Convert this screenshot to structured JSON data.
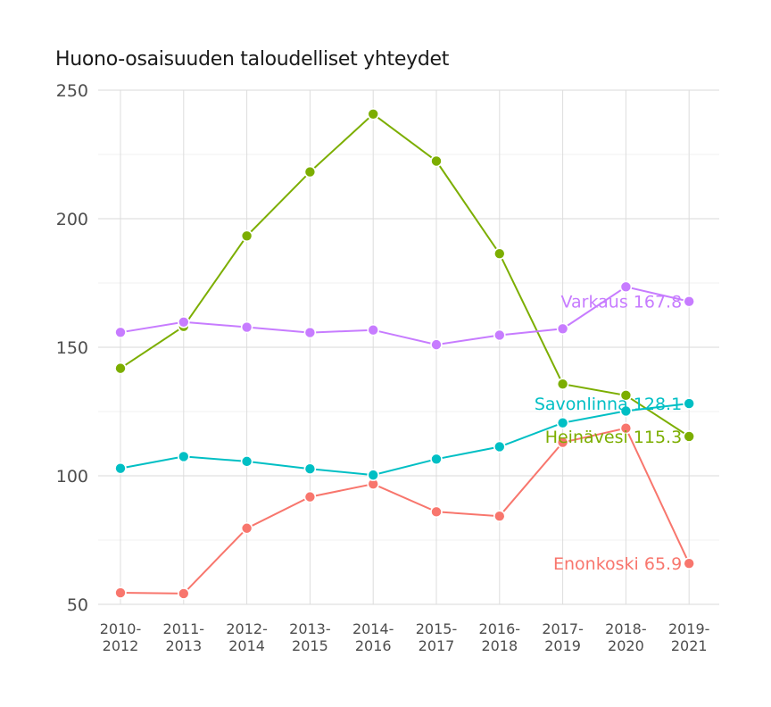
{
  "chart_data": {
    "type": "line",
    "title": "Huono-osaisuuden taloudelliset yhteydet",
    "xlabel": "",
    "ylabel": "",
    "categories": [
      "2010-2012",
      "2011-2013",
      "2012-2014",
      "2013-2015",
      "2014-2016",
      "2015-2017",
      "2016-2018",
      "2017-2019",
      "2018-2020",
      "2019-2021"
    ],
    "yticks": [
      50,
      100,
      150,
      200,
      250
    ],
    "ylim": [
      50,
      250
    ],
    "grid": true,
    "series": [
      {
        "name": "Enonkoski",
        "color": "#F8766D",
        "values": [
          54.5,
          54.2,
          79.6,
          91.8,
          96.8,
          86.0,
          84.3,
          113.0,
          118.5,
          65.9
        ],
        "label": "Enonkoski 65.9"
      },
      {
        "name": "Heinävesi",
        "color": "#7CAE00",
        "values": [
          141.8,
          158.1,
          193.3,
          218.2,
          240.7,
          222.4,
          186.4,
          135.7,
          131.3,
          115.3
        ],
        "label": "Heinävesi 115.3"
      },
      {
        "name": "Savonlinna",
        "color": "#00BFC4",
        "values": [
          102.9,
          107.5,
          105.6,
          102.7,
          100.3,
          106.5,
          111.3,
          120.6,
          125.2,
          128.1
        ],
        "label": "Savonlinna 128.1"
      },
      {
        "name": "Varkaus",
        "color": "#C77CFF",
        "values": [
          155.8,
          159.8,
          157.8,
          155.7,
          156.7,
          151.0,
          154.7,
          157.2,
          173.5,
          167.8
        ],
        "label": "Varkaus 167.8"
      }
    ]
  }
}
